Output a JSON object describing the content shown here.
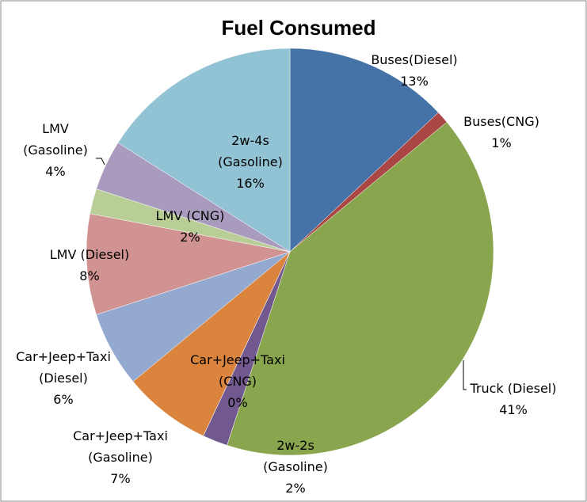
{
  "chart_data": {
    "type": "pie",
    "title": "Fuel Consumed",
    "categories": [
      "Buses(Diesel)",
      "Buses(CNG)",
      "Truck (Diesel)",
      "2w-2s (Gasoline)",
      "Car+Jeep+Taxi (CNG)",
      "Car+Jeep+Taxi (Gasoline)",
      "Car+Jeep+Taxi (Diesel)",
      "LMV (Diesel)",
      "LMV (CNG)",
      "LMV (Gasoline)",
      "2w-4s (Gasoline)"
    ],
    "values": [
      13,
      1,
      41,
      2,
      0,
      7,
      6,
      8,
      2,
      4,
      16
    ],
    "value_labels": [
      "13%",
      "1%",
      "41%",
      "2%",
      "0%",
      "7%",
      "6%",
      "8%",
      "2%",
      "4%",
      "16%"
    ],
    "colors": [
      "#4572a7",
      "#aa4643",
      "#89a54e",
      "#71588f",
      "#4198af",
      "#db843d",
      "#93a9cf",
      "#d19392",
      "#b9cd96",
      "#a99bbd",
      "#92c3d4"
    ]
  }
}
